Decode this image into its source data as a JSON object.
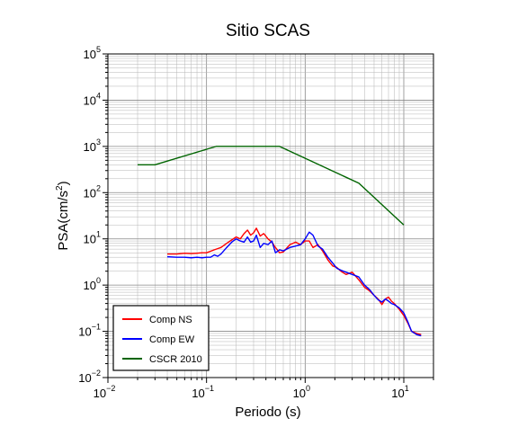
{
  "chart_data": {
    "type": "line",
    "title": "Sitio SCAS",
    "xlabel": "Periodo (s)",
    "ylabel": "PSA(cm/s2)",
    "ylabel_parts": {
      "base": "PSA(cm/s",
      "sup": "2",
      "end": ")"
    },
    "xscale": "log",
    "yscale": "log",
    "xlim": [
      0.01,
      20
    ],
    "ylim": [
      0.01,
      100000
    ],
    "grid": true,
    "legend_position": "bottom-left",
    "x_ticks": [
      {
        "base": "10",
        "exp": "−2",
        "value": 0.01
      },
      {
        "base": "10",
        "exp": "−1",
        "value": 0.1
      },
      {
        "base": "10",
        "exp": "0",
        "value": 1
      },
      {
        "base": "10",
        "exp": "1",
        "value": 10
      }
    ],
    "y_ticks": [
      {
        "base": "10",
        "exp": "−2",
        "value": 0.01
      },
      {
        "base": "10",
        "exp": "−1",
        "value": 0.1
      },
      {
        "base": "10",
        "exp": "0",
        "value": 1
      },
      {
        "base": "10",
        "exp": "1",
        "value": 10
      },
      {
        "base": "10",
        "exp": "2",
        "value": 100
      },
      {
        "base": "10",
        "exp": "3",
        "value": 1000
      },
      {
        "base": "10",
        "exp": "4",
        "value": 10000
      },
      {
        "base": "10",
        "exp": "5",
        "value": 100000
      }
    ],
    "series": [
      {
        "name": "Comp NS",
        "color": "#ff0000",
        "x": [
          0.04,
          0.05,
          0.06,
          0.07,
          0.08,
          0.09,
          0.1,
          0.12,
          0.14,
          0.16,
          0.18,
          0.2,
          0.22,
          0.24,
          0.26,
          0.28,
          0.3,
          0.32,
          0.35,
          0.38,
          0.42,
          0.46,
          0.5,
          0.55,
          0.6,
          0.7,
          0.8,
          0.9,
          1.0,
          1.1,
          1.2,
          1.35,
          1.5,
          1.7,
          1.9,
          2.1,
          2.3,
          2.6,
          3.0,
          3.5,
          4.0,
          4.5,
          5.0,
          5.5,
          6.0,
          6.5,
          7.0,
          7.5,
          8.0,
          9.0,
          10.0,
          11.0,
          12.0,
          13.5,
          15.0
        ],
        "y": [
          4.7,
          4.7,
          4.9,
          4.8,
          4.9,
          5.0,
          5.0,
          5.8,
          6.5,
          8.0,
          9.5,
          11.0,
          10.0,
          13.0,
          15.5,
          12.0,
          13.5,
          17.0,
          11.5,
          13.0,
          10.0,
          8.5,
          6.5,
          5.0,
          5.2,
          7.5,
          8.5,
          7.5,
          9.0,
          9.0,
          6.5,
          7.5,
          5.5,
          3.5,
          2.6,
          2.4,
          2.0,
          1.7,
          1.9,
          1.3,
          0.9,
          0.75,
          0.6,
          0.5,
          0.38,
          0.5,
          0.55,
          0.45,
          0.4,
          0.3,
          0.22,
          0.15,
          0.1,
          0.09,
          0.085
        ]
      },
      {
        "name": "Comp EW",
        "color": "#0000ff",
        "x": [
          0.04,
          0.05,
          0.06,
          0.07,
          0.08,
          0.09,
          0.1,
          0.11,
          0.12,
          0.13,
          0.14,
          0.16,
          0.18,
          0.2,
          0.22,
          0.24,
          0.26,
          0.28,
          0.3,
          0.32,
          0.35,
          0.38,
          0.42,
          0.46,
          0.5,
          0.55,
          0.6,
          0.7,
          0.8,
          0.9,
          1.0,
          1.1,
          1.2,
          1.35,
          1.5,
          1.7,
          1.9,
          2.1,
          2.3,
          2.6,
          3.0,
          3.5,
          4.0,
          4.5,
          5.0,
          5.5,
          6.0,
          6.5,
          7.0,
          7.5,
          8.0,
          9.0,
          10.0,
          11.0,
          12.0,
          13.5,
          15.0
        ],
        "y": [
          4.1,
          4.0,
          4.0,
          3.9,
          4.0,
          3.9,
          4.0,
          4.0,
          4.5,
          4.2,
          4.7,
          6.5,
          8.5,
          10.0,
          9.0,
          8.5,
          11.0,
          8.5,
          9.0,
          12.0,
          6.5,
          8.0,
          7.5,
          9.0,
          5.0,
          5.8,
          5.5,
          6.5,
          7.0,
          7.5,
          10.0,
          14.0,
          12.0,
          7.0,
          6.0,
          4.0,
          3.0,
          2.3,
          2.1,
          1.9,
          1.7,
          1.5,
          1.0,
          0.8,
          0.6,
          0.48,
          0.43,
          0.5,
          0.45,
          0.4,
          0.38,
          0.32,
          0.25,
          0.16,
          0.1,
          0.085,
          0.08
        ]
      },
      {
        "name": "CSCR 2010",
        "color": "#006400",
        "x": [
          0.02,
          0.03,
          0.125,
          0.55,
          3.5,
          10.0
        ],
        "y": [
          400,
          400,
          1000,
          1000,
          160,
          20
        ]
      }
    ]
  }
}
